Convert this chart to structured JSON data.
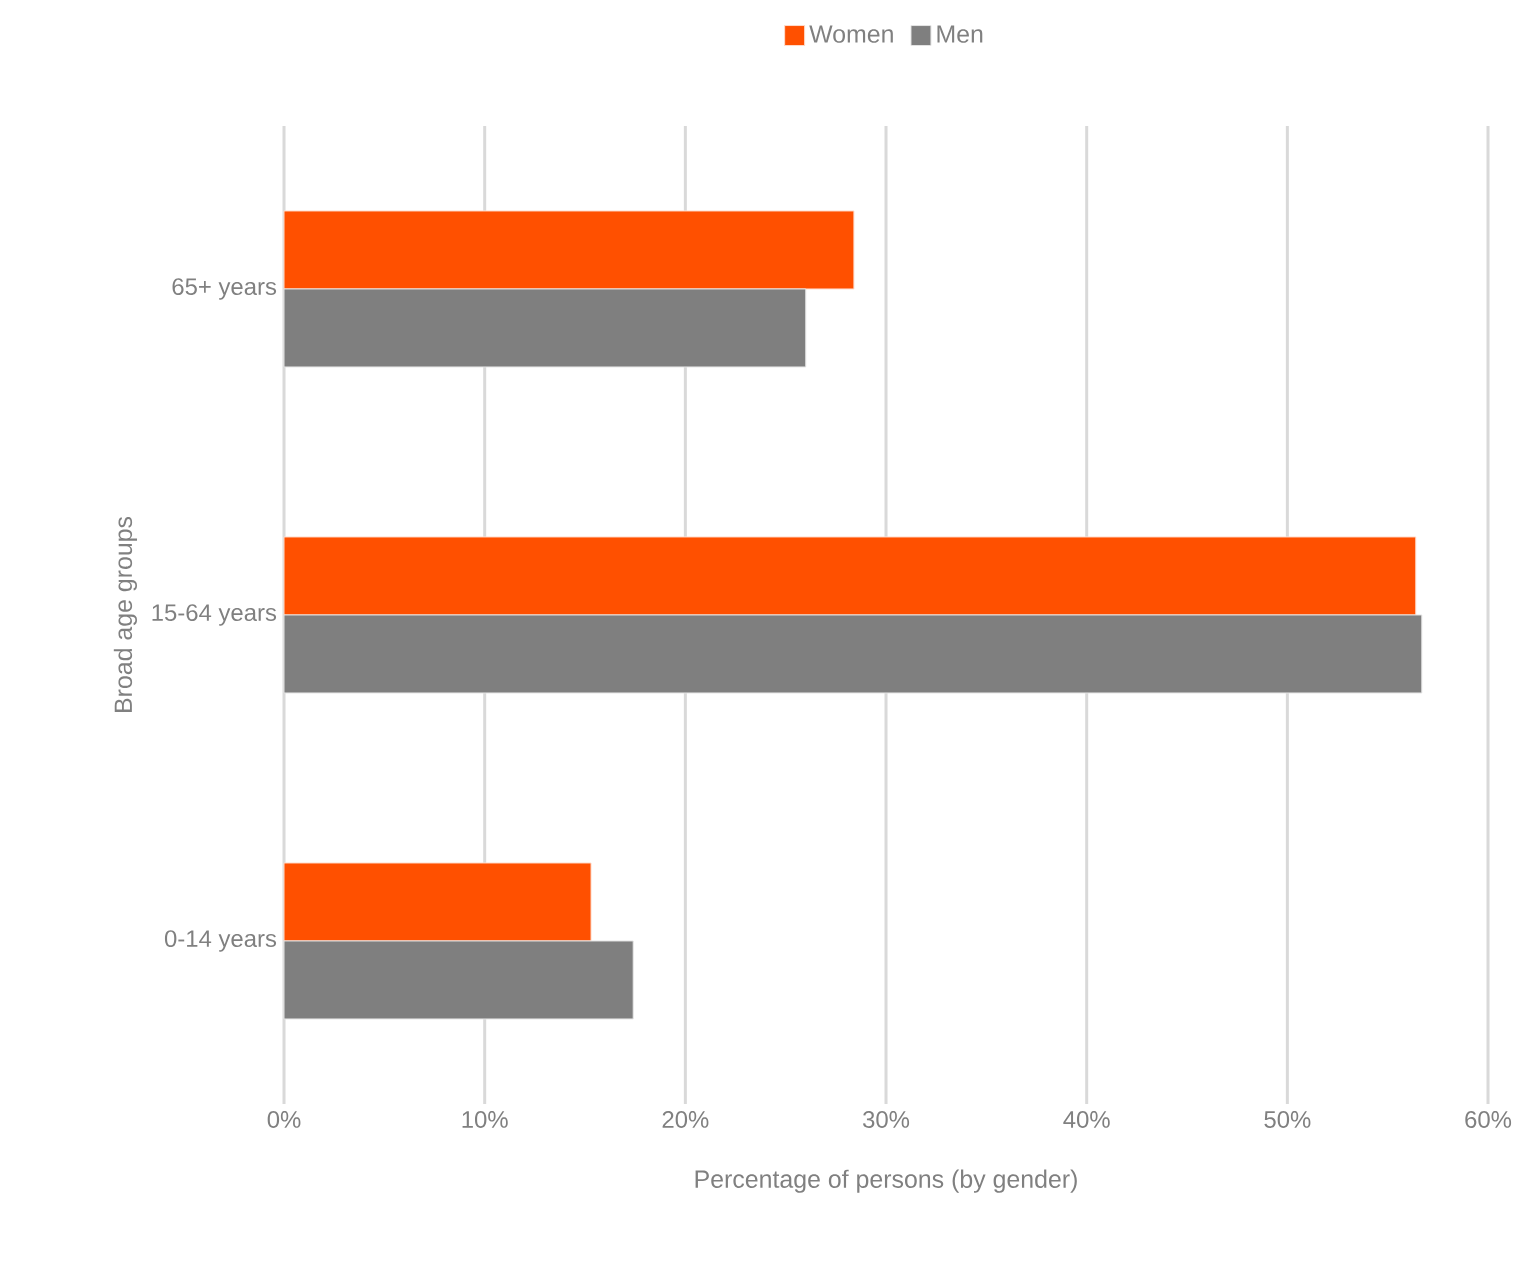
{
  "chart_data": {
    "type": "bar",
    "orientation": "horizontal",
    "categories": [
      "65+ years",
      "15-64 years",
      "0-14 years"
    ],
    "series": [
      {
        "name": "Women",
        "color": "#ff5000",
        "values": [
          28.4,
          56.4,
          15.3
        ]
      },
      {
        "name": "Men",
        "color": "#7f7f7f",
        "values": [
          26.0,
          56.7,
          17.4
        ]
      }
    ],
    "xlim": [
      0,
      60
    ],
    "xticks": [
      {
        "value": 0,
        "label": "0%"
      },
      {
        "value": 10,
        "label": "10%"
      },
      {
        "value": 20,
        "label": "20%"
      },
      {
        "value": 30,
        "label": "30%"
      },
      {
        "value": 40,
        "label": "40%"
      },
      {
        "value": 50,
        "label": "50%"
      },
      {
        "value": 60,
        "label": "60%"
      }
    ],
    "xlabel": "Percentage of persons (by gender)",
    "ylabel": "Broad age groups",
    "grid": "x",
    "legend": "top"
  }
}
